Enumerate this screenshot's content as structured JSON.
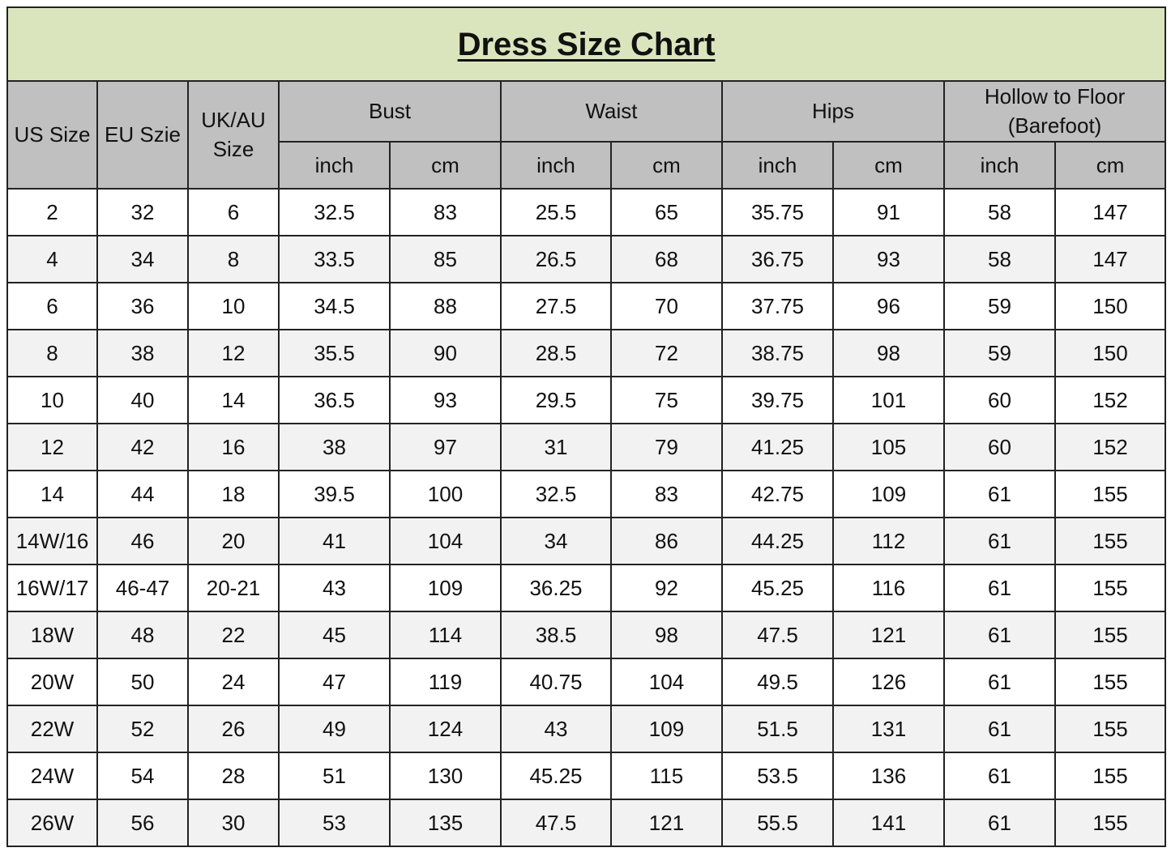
{
  "title": "Dress Size Chart",
  "headers": {
    "us": "US Size",
    "eu": "EU Szie",
    "uk": "UK/AU Size",
    "groups": [
      "Bust",
      "Waist",
      "Hips",
      "Hollow to Floor (Barefoot)"
    ],
    "units": [
      "inch",
      "cm",
      "inch",
      "cm",
      "inch",
      "cm",
      "inch",
      "cm"
    ]
  },
  "colors": {
    "title_bg": "#dbe5bd",
    "header_bg": "#c0c0c0",
    "alt_row_bg": "#f2f2f2"
  },
  "chart_data": {
    "type": "table",
    "title": "Dress Size Chart",
    "columns": [
      "US Size",
      "EU Szie",
      "UK/AU Size",
      "Bust inch",
      "Bust cm",
      "Waist inch",
      "Waist cm",
      "Hips inch",
      "Hips cm",
      "Hollow to Floor (Barefoot) inch",
      "Hollow to Floor (Barefoot) cm"
    ],
    "rows": [
      [
        "2",
        "32",
        "6",
        "32.5",
        "83",
        "25.5",
        "65",
        "35.75",
        "91",
        "58",
        "147"
      ],
      [
        "4",
        "34",
        "8",
        "33.5",
        "85",
        "26.5",
        "68",
        "36.75",
        "93",
        "58",
        "147"
      ],
      [
        "6",
        "36",
        "10",
        "34.5",
        "88",
        "27.5",
        "70",
        "37.75",
        "96",
        "59",
        "150"
      ],
      [
        "8",
        "38",
        "12",
        "35.5",
        "90",
        "28.5",
        "72",
        "38.75",
        "98",
        "59",
        "150"
      ],
      [
        "10",
        "40",
        "14",
        "36.5",
        "93",
        "29.5",
        "75",
        "39.75",
        "101",
        "60",
        "152"
      ],
      [
        "12",
        "42",
        "16",
        "38",
        "97",
        "31",
        "79",
        "41.25",
        "105",
        "60",
        "152"
      ],
      [
        "14",
        "44",
        "18",
        "39.5",
        "100",
        "32.5",
        "83",
        "42.75",
        "109",
        "61",
        "155"
      ],
      [
        "14W/16",
        "46",
        "20",
        "41",
        "104",
        "34",
        "86",
        "44.25",
        "112",
        "61",
        "155"
      ],
      [
        "16W/17",
        "46-47",
        "20-21",
        "43",
        "109",
        "36.25",
        "92",
        "45.25",
        "116",
        "61",
        "155"
      ],
      [
        "18W",
        "48",
        "22",
        "45",
        "114",
        "38.5",
        "98",
        "47.5",
        "121",
        "61",
        "155"
      ],
      [
        "20W",
        "50",
        "24",
        "47",
        "119",
        "40.75",
        "104",
        "49.5",
        "126",
        "61",
        "155"
      ],
      [
        "22W",
        "52",
        "26",
        "49",
        "124",
        "43",
        "109",
        "51.5",
        "131",
        "61",
        "155"
      ],
      [
        "24W",
        "54",
        "28",
        "51",
        "130",
        "45.25",
        "115",
        "53.5",
        "136",
        "61",
        "155"
      ],
      [
        "26W",
        "56",
        "30",
        "53",
        "135",
        "47.5",
        "121",
        "55.5",
        "141",
        "61",
        "155"
      ]
    ]
  }
}
